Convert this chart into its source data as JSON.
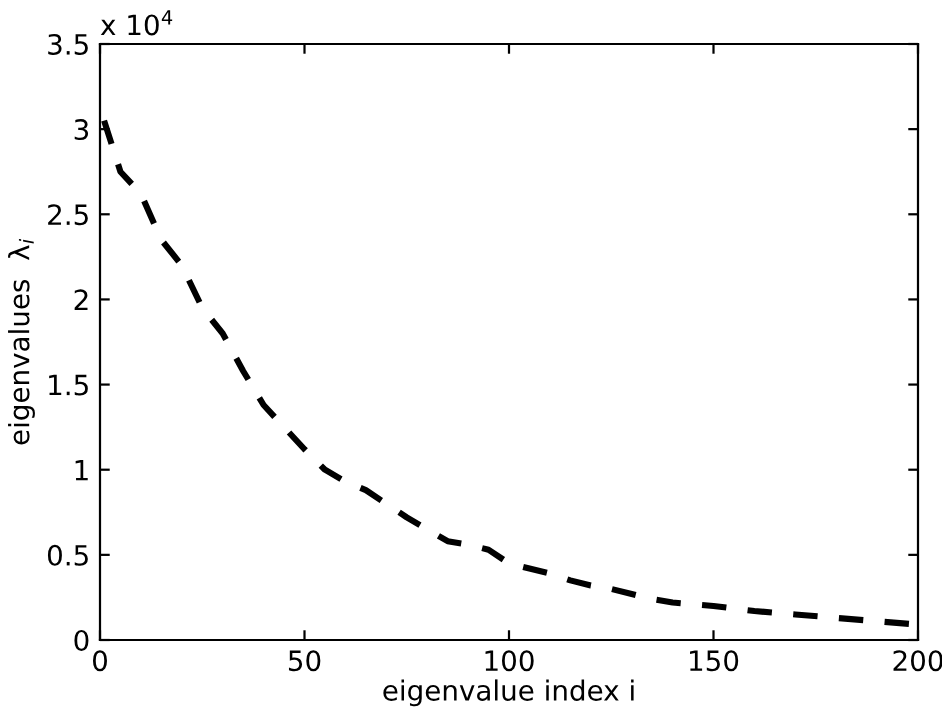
{
  "chart_data": {
    "type": "line",
    "xlabel": "eigenvalue index i",
    "ylabel": "eigenvalues  λ$_{i}$",
    "annotations": [
      "x 10$^{4}$"
    ],
    "x": [
      1,
      5,
      10,
      15,
      20,
      25,
      30,
      35,
      40,
      45,
      50,
      55,
      60,
      65,
      70,
      75,
      80,
      85,
      90,
      95,
      100,
      105,
      110,
      115,
      120,
      125,
      130,
      135,
      140,
      145,
      150,
      160,
      170,
      180,
      190,
      200
    ],
    "series": [
      {
        "color": "#000000",
        "values": [
          3.05,
          2.75,
          2.62,
          2.35,
          2.2,
          1.95,
          1.8,
          1.58,
          1.38,
          1.25,
          1.12,
          1.0,
          0.93,
          0.88,
          0.8,
          0.72,
          0.65,
          0.58,
          0.56,
          0.53,
          0.45,
          0.42,
          0.39,
          0.35,
          0.32,
          0.3,
          0.27,
          0.24,
          0.22,
          0.21,
          0.2,
          0.17,
          0.15,
          0.13,
          0.11,
          0.09
        ]
      }
    ],
    "xlim": [
      0,
      200
    ],
    "ylim": [
      0,
      3.5
    ],
    "xticks": [
      0,
      50,
      100,
      150,
      200
    ],
    "yticks": [
      0,
      0.5,
      1,
      1.5,
      2,
      2.5,
      3,
      3.5
    ],
    "line_style": "dashed",
    "marker": "none",
    "grid": false,
    "legend": false
  }
}
